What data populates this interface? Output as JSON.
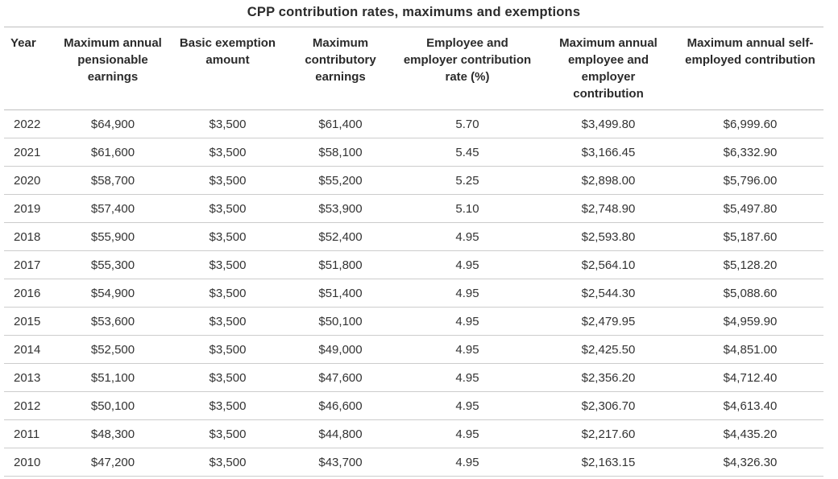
{
  "chart_data": {
    "type": "table",
    "title": "CPP contribution rates, maximums and exemptions",
    "columns": [
      "Year",
      "Maximum annual pensionable earnings",
      "Basic exemption amount",
      "Maximum contributory earnings",
      "Employee and employer contribution rate (%)",
      "Maximum annual employee and employer contribution",
      "Maximum annual self-employed contribution"
    ],
    "rows": [
      [
        "2022",
        "$64,900",
        "$3,500",
        "$61,400",
        "5.70",
        "$3,499.80",
        "$6,999.60"
      ],
      [
        "2021",
        "$61,600",
        "$3,500",
        "$58,100",
        "5.45",
        "$3,166.45",
        "$6,332.90"
      ],
      [
        "2020",
        "$58,700",
        "$3,500",
        "$55,200",
        "5.25",
        "$2,898.00",
        "$5,796.00"
      ],
      [
        "2019",
        "$57,400",
        "$3,500",
        "$53,900",
        "5.10",
        "$2,748.90",
        "$5,497.80"
      ],
      [
        "2018",
        "$55,900",
        "$3,500",
        "$52,400",
        "4.95",
        "$2,593.80",
        "$5,187.60"
      ],
      [
        "2017",
        "$55,300",
        "$3,500",
        "$51,800",
        "4.95",
        "$2,564.10",
        "$5,128.20"
      ],
      [
        "2016",
        "$54,900",
        "$3,500",
        "$51,400",
        "4.95",
        "$2,544.30",
        "$5,088.60"
      ],
      [
        "2015",
        "$53,600",
        "$3,500",
        "$50,100",
        "4.95",
        "$2,479.95",
        "$4,959.90"
      ],
      [
        "2014",
        "$52,500",
        "$3,500",
        "$49,000",
        "4.95",
        "$2,425.50",
        "$4,851.00"
      ],
      [
        "2013",
        "$51,100",
        "$3,500",
        "$47,600",
        "4.95",
        "$2,356.20",
        "$4,712.40"
      ],
      [
        "2012",
        "$50,100",
        "$3,500",
        "$46,600",
        "4.95",
        "$2,306.70",
        "$4,613.40"
      ],
      [
        "2011",
        "$48,300",
        "$3,500",
        "$44,800",
        "4.95",
        "$2,217.60",
        "$4,435.20"
      ],
      [
        "2010",
        "$47,200",
        "$3,500",
        "$43,700",
        "4.95",
        "$2,163.15",
        "$4,326.30"
      ]
    ],
    "layout_hints": {
      "title_position": "top-center",
      "year_column_align": "left",
      "data_columns_align": "center",
      "grid": "horizontal-rules-only"
    },
    "colors": {
      "text": "#333333",
      "title_text": "#2b2b2b",
      "header_border": "#bfbfbf",
      "row_border": "#cccccc",
      "background": "#ffffff"
    }
  }
}
